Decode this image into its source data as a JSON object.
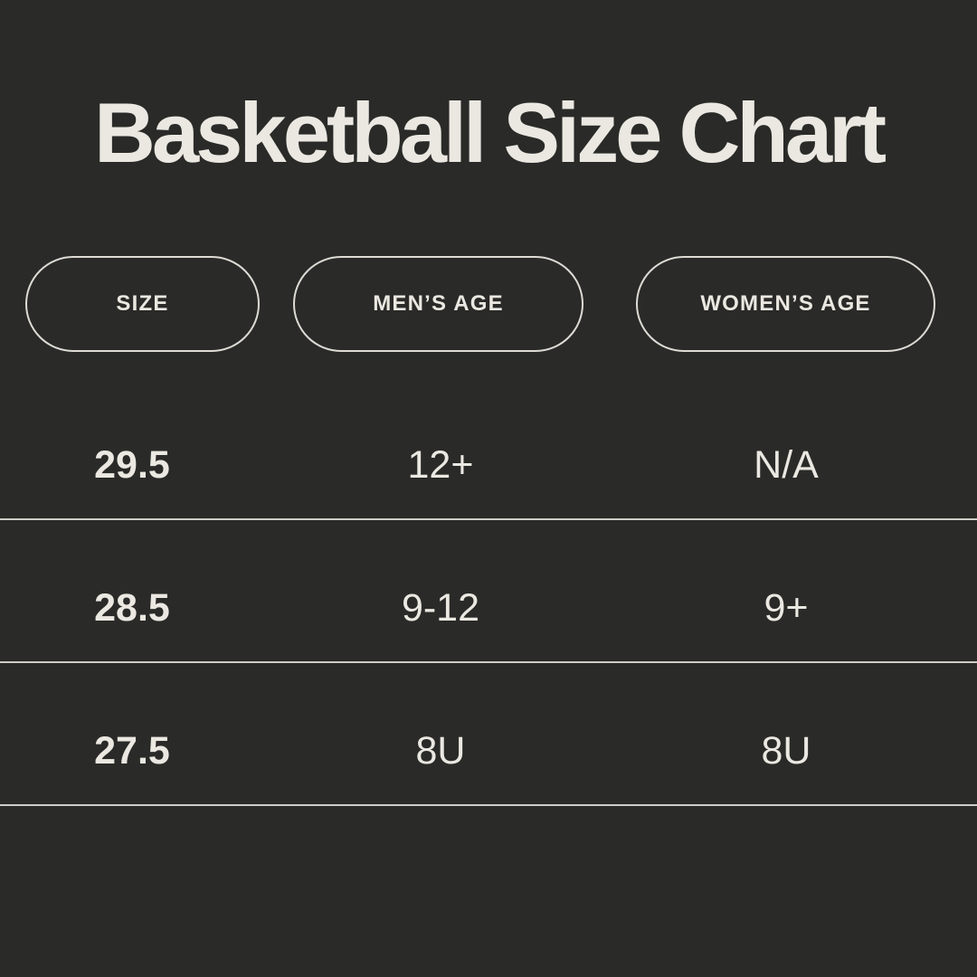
{
  "chart_data": {
    "type": "table",
    "title": "Basketball Size Chart",
    "columns": [
      "SIZE",
      "MEN’S AGE",
      "WOMEN’S AGE"
    ],
    "rows": [
      [
        "29.5",
        "12+",
        "N/A"
      ],
      [
        "28.5",
        "9-12",
        "9+"
      ],
      [
        "27.5",
        "8U",
        "8U"
      ]
    ],
    "layout": {
      "legend": "none",
      "grid": "horizontal-dividers",
      "header_style": "outlined-pill-badges"
    }
  },
  "colors": {
    "background": "#2a2a28",
    "foreground": "#eae8e1",
    "pill_border": "#dddbd4",
    "divider": "#cfcdc7"
  }
}
